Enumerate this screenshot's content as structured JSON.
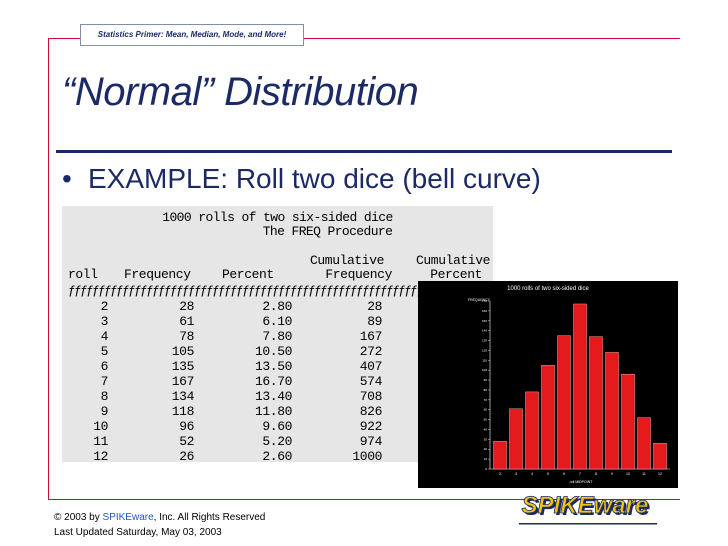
{
  "header_tab": "Statistics Primer:  Mean, Median, Mode, and More!",
  "title": "“Normal” Distribution",
  "bullet": "EXAMPLE:  Roll two dice (bell curve)",
  "freq_table": {
    "title_line1": "1000 rolls of two six-sided dice",
    "title_line2": "The FREQ Procedure",
    "header_cum1": "Cumulative",
    "header_cum2": "Cumulative",
    "headers": [
      "roll",
      "Frequency",
      "Percent",
      "Frequency",
      "Percent"
    ],
    "separator": "ƒƒƒƒƒƒƒƒƒƒƒƒƒƒƒƒƒƒƒƒƒƒƒƒƒƒƒƒƒƒƒƒƒƒƒƒƒƒƒƒƒƒƒƒƒƒƒƒƒƒƒƒƒƒƒƒƒƒƒƒƒƒƒƒƒƒƒƒƒƒƒƒƒƒ",
    "rows": [
      {
        "roll": "2",
        "frequency": "28",
        "percent": "2.80",
        "cum_frequency": "28"
      },
      {
        "roll": "3",
        "frequency": "61",
        "percent": "6.10",
        "cum_frequency": "89"
      },
      {
        "roll": "4",
        "frequency": "78",
        "percent": "7.80",
        "cum_frequency": "167"
      },
      {
        "roll": "5",
        "frequency": "105",
        "percent": "10.50",
        "cum_frequency": "272"
      },
      {
        "roll": "6",
        "frequency": "135",
        "percent": "13.50",
        "cum_frequency": "407"
      },
      {
        "roll": "7",
        "frequency": "167",
        "percent": "16.70",
        "cum_frequency": "574"
      },
      {
        "roll": "8",
        "frequency": "134",
        "percent": "13.40",
        "cum_frequency": "708"
      },
      {
        "roll": "9",
        "frequency": "118",
        "percent": "11.80",
        "cum_frequency": "826"
      },
      {
        "roll": "10",
        "frequency": "96",
        "percent": "9.60",
        "cum_frequency": "922"
      },
      {
        "roll": "11",
        "frequency": "52",
        "percent": "5.20",
        "cum_frequency": "974"
      },
      {
        "roll": "12",
        "frequency": "26",
        "percent": "2.60",
        "cum_frequency": "1000"
      }
    ]
  },
  "chart_data": {
    "type": "bar",
    "title": "1000 rolls of two six-sided dice",
    "ylabel": "FREQUENCY",
    "xlabel": "roll MIDPOINT",
    "categories": [
      "2",
      "3",
      "4",
      "5",
      "6",
      "7",
      "8",
      "9",
      "10",
      "11",
      "12"
    ],
    "values": [
      28,
      61,
      78,
      105,
      135,
      167,
      134,
      118,
      96,
      52,
      26
    ],
    "y_ticks": [
      0,
      10,
      20,
      30,
      40,
      50,
      60,
      70,
      80,
      90,
      100,
      110,
      120,
      130,
      140,
      150,
      160,
      170
    ],
    "ylim": [
      0,
      170
    ],
    "bar_color": "#e41a1c",
    "background": "#000000",
    "grid": false,
    "legend": "none"
  },
  "footer": {
    "copy_prefix": "© 2003 by ",
    "copy_brand": "SPIKEware",
    "copy_suffix": ", Inc.  All Rights Reserved",
    "updated": "Last Updated Saturday, May 03, 2003"
  },
  "logo": {
    "text": "SPIKEware",
    "fill_color": "#f2c40f",
    "shadow_color": "#1b2a66"
  },
  "colors": {
    "accent": "#c8102e",
    "title": "#1b2a66",
    "panel": "#e6e6e6"
  }
}
